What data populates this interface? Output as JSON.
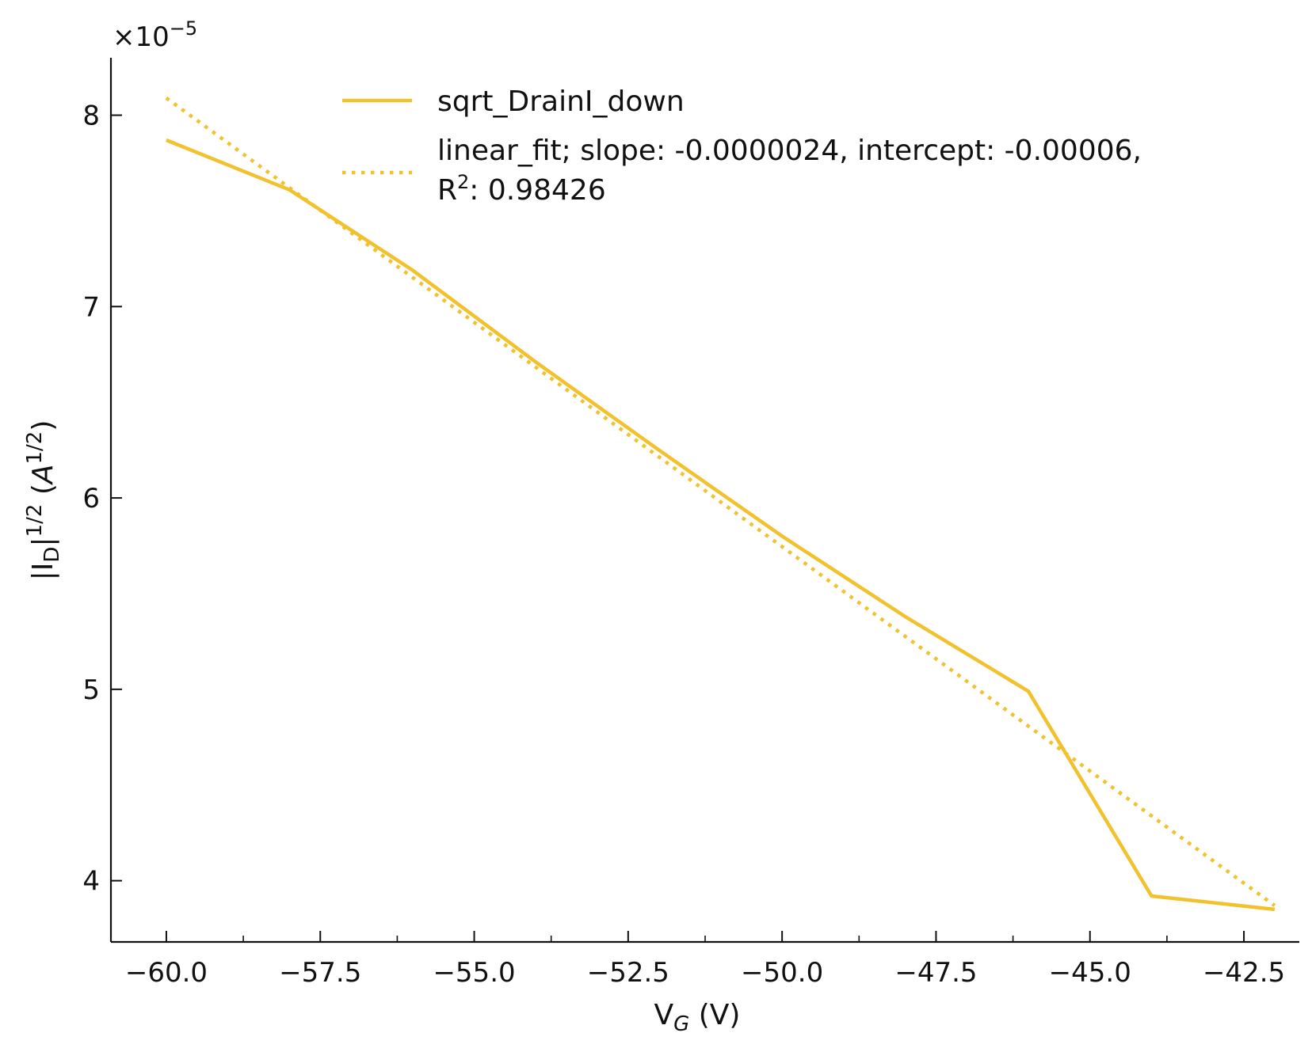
{
  "chart_data": {
    "type": "line",
    "title": "",
    "xlabel": {
      "main": "V",
      "sub": "G",
      "unit": " (V)"
    },
    "ylabel": {
      "pre": "|I",
      "sub": "D",
      "mid": "|",
      "sup": "1/2",
      "post": " (",
      "unit_base": "A",
      "unit_sup": "1/2",
      "close": ")"
    },
    "y_multiplier": "×10",
    "y_multiplier_exp": "−5",
    "xlim": [
      -60.9,
      -41.6
    ],
    "ylim": [
      3.68,
      8.3
    ],
    "y_scale": 1e-05,
    "grid": false,
    "legend_position": "top-center",
    "xticks": [
      {
        "value": -60.0,
        "label": "−60.0"
      },
      {
        "value": -57.5,
        "label": "−57.5"
      },
      {
        "value": -55.0,
        "label": "−55.0"
      },
      {
        "value": -52.5,
        "label": "−52.5"
      },
      {
        "value": -50.0,
        "label": "−50.0"
      },
      {
        "value": -47.5,
        "label": "−47.5"
      },
      {
        "value": -45.0,
        "label": "−45.0"
      },
      {
        "value": -42.5,
        "label": "−42.5"
      }
    ],
    "xminor": [
      -58.75,
      -56.25,
      -53.75,
      -51.25,
      -48.75,
      -46.25,
      -43.75,
      -41.25
    ],
    "yticks": [
      {
        "value": 4,
        "label": "4"
      },
      {
        "value": 5,
        "label": "5"
      },
      {
        "value": 6,
        "label": "6"
      },
      {
        "value": 7,
        "label": "7"
      },
      {
        "value": 8,
        "label": "8"
      }
    ],
    "series": [
      {
        "name": "sqrt_DrainI_down",
        "style": "solid",
        "color": "#f2c12e",
        "x": [
          -60,
          -58,
          -56,
          -54,
          -52,
          -50,
          -48,
          -46,
          -44,
          -42
        ],
        "y": [
          7.87,
          7.61,
          7.19,
          6.71,
          6.25,
          5.8,
          5.38,
          4.99,
          3.92,
          3.85
        ]
      },
      {
        "name": "linear_fit; slope: -0.0000024, intercept: -0.00006, R²: 0.98426",
        "legend_lines": [
          "linear_fit; slope: -0.0000024, intercept: -0.00006,",
          "R",
          "2",
          ": 0.98426"
        ],
        "style": "dotted",
        "color": "#f2c12e",
        "x": [
          -60,
          -42
        ],
        "y": [
          8.09,
          3.87
        ]
      }
    ]
  }
}
